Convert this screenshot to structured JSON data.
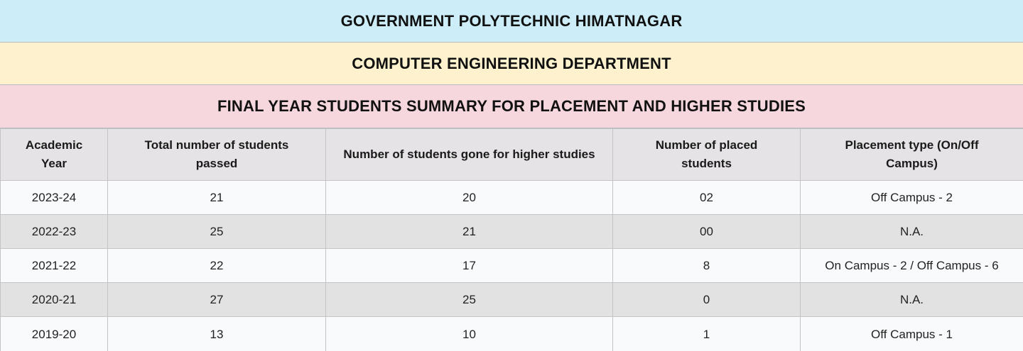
{
  "banners": [
    {
      "id": "institute",
      "text": "GOVERNMENT POLYTECHNIC HIMATNAGAR"
    },
    {
      "id": "department",
      "text": "COMPUTER ENGINEERING DEPARTMENT"
    },
    {
      "id": "section",
      "text": "FINAL YEAR STUDENTS SUMMARY FOR PLACEMENT AND HIGHER STUDIES"
    }
  ],
  "table": {
    "columns": [
      "Academic Year",
      "Total number of students passed",
      "Number of students gone for higher studies",
      "Number of placed students",
      "Placement type (On/Off Campus)"
    ],
    "rows": [
      [
        "2023-24",
        "21",
        "20",
        "02",
        "Off Campus - 2"
      ],
      [
        "2022-23",
        "25",
        "21",
        "00",
        "N.A."
      ],
      [
        "2021-22",
        "22",
        "17",
        "8",
        "On Campus - 2 / Off Campus - 6"
      ],
      [
        "2020-21",
        "27",
        "25",
        "0",
        "N.A."
      ],
      [
        "2019-20",
        "13",
        "10",
        "1",
        "Off Campus - 1"
      ]
    ]
  },
  "colors": {
    "banner_blue_bg": "#cdeef9",
    "banner_yellow_bg": "#fdf2cd",
    "banner_pink_bg": "#f6d7de",
    "header_bg": "#e5e3e5",
    "row_odd_bg": "#f9fafb",
    "row_even_bg": "#e3e2e3",
    "border": "#c4c4c4",
    "text": "#1b1b1b"
  }
}
